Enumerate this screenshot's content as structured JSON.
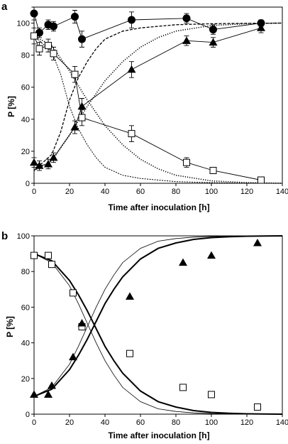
{
  "chart_data": [
    {
      "panel": "a",
      "type": "scatter",
      "xlabel": "Time after inoculation [h]",
      "ylabel": "P [%]",
      "xlim": [
        0,
        140
      ],
      "ylim": [
        0,
        110
      ],
      "xticks": [
        0,
        20,
        40,
        60,
        80,
        100,
        120,
        140
      ],
      "yticks": [
        0,
        20,
        40,
        60,
        80,
        100
      ],
      "series": [
        {
          "marker": "circle-filled",
          "connected": true,
          "x": [
            0,
            3,
            8,
            11,
            23,
            27,
            55,
            86,
            101,
            128
          ],
          "y": [
            106,
            94,
            99,
            98,
            104,
            90,
            102,
            103,
            96,
            100
          ],
          "err": [
            4,
            3,
            3,
            3,
            4,
            5,
            5,
            3,
            3,
            2
          ]
        },
        {
          "marker": "square-open",
          "connected": true,
          "x": [
            0,
            3,
            8,
            11,
            23,
            27,
            55,
            86,
            101,
            128
          ],
          "y": [
            92,
            84,
            86,
            81,
            68,
            41,
            31,
            13,
            8,
            2
          ],
          "err": [
            5,
            4,
            4,
            4,
            5,
            5,
            5,
            3,
            2,
            1
          ]
        },
        {
          "marker": "triangle-filled",
          "connected": true,
          "x": [
            0,
            3,
            8,
            11,
            23,
            27,
            55,
            86,
            101,
            128
          ],
          "y": [
            13,
            11,
            12,
            16,
            35,
            48,
            71,
            89,
            88,
            97
          ],
          "err": [
            3,
            3,
            3,
            3,
            4,
            5,
            5,
            3,
            3,
            3
          ]
        },
        {
          "line": "dashed",
          "x": [
            0,
            10,
            15,
            20,
            25,
            30,
            35,
            40,
            50,
            60,
            80,
            100,
            120,
            140
          ],
          "y": [
            8,
            18,
            32,
            52,
            66,
            76,
            84,
            90,
            95,
            97,
            99,
            99.6,
            99.9,
            100
          ]
        },
        {
          "line": "dashed-fine",
          "x": [
            0,
            10,
            15,
            20,
            25,
            30,
            35,
            40,
            50,
            60,
            80,
            100,
            120,
            140
          ],
          "y": [
            92,
            82,
            68,
            48,
            34,
            24,
            16,
            10,
            5,
            3,
            1,
            0.4,
            0.1,
            0
          ]
        },
        {
          "line": "dotted",
          "x": [
            0,
            10,
            20,
            30,
            40,
            50,
            60,
            70,
            80,
            100,
            120,
            140
          ],
          "y": [
            8,
            14,
            30,
            48,
            64,
            76,
            85,
            91,
            95,
            98.5,
            99.6,
            100
          ]
        },
        {
          "line": "dotted",
          "x": [
            0,
            10,
            20,
            30,
            40,
            50,
            60,
            70,
            80,
            100,
            120,
            140
          ],
          "y": [
            92,
            86,
            70,
            52,
            36,
            24,
            15,
            9,
            5,
            1.5,
            0.4,
            0
          ]
        }
      ]
    },
    {
      "panel": "b",
      "type": "scatter",
      "xlabel": "Time after inoculation [h]",
      "ylabel": "P [%]",
      "xlim": [
        0,
        140
      ],
      "ylim": [
        0,
        100
      ],
      "xticks": [
        0,
        20,
        40,
        60,
        80,
        100,
        120,
        140
      ],
      "yticks": [
        0,
        20,
        40,
        60,
        80,
        100
      ],
      "series": [
        {
          "marker": "square-open",
          "x": [
            0,
            8,
            10,
            22,
            27,
            54,
            84,
            100,
            126
          ],
          "y": [
            89,
            89,
            84,
            68,
            49,
            34,
            15,
            11,
            4
          ]
        },
        {
          "marker": "triangle-filled",
          "x": [
            0,
            8,
            10,
            22,
            27,
            54,
            84,
            100,
            126
          ],
          "y": [
            11,
            11,
            16,
            32,
            51,
            66,
            85,
            89,
            96
          ]
        },
        {
          "line": "thick",
          "x": [
            0,
            10,
            20,
            25,
            30,
            35,
            40,
            45,
            50,
            60,
            70,
            80,
            90,
            100,
            110,
            120,
            140
          ],
          "y": [
            10,
            14,
            25,
            33,
            42,
            52,
            62,
            70,
            77,
            87,
            93,
            96,
            98,
            99,
            99.5,
            99.8,
            100
          ]
        },
        {
          "line": "thick",
          "x": [
            0,
            10,
            20,
            25,
            30,
            35,
            40,
            45,
            50,
            60,
            70,
            80,
            90,
            100,
            110,
            120,
            140
          ],
          "y": [
            90,
            86,
            75,
            67,
            58,
            48,
            38,
            30,
            23,
            13,
            7,
            4,
            2,
            1,
            0.5,
            0.2,
            0
          ]
        },
        {
          "line": "thin",
          "x": [
            0,
            10,
            20,
            25,
            30,
            35,
            40,
            45,
            50,
            60,
            70,
            80,
            90,
            100,
            120,
            140
          ],
          "y": [
            10,
            15,
            28,
            38,
            49,
            60,
            70,
            78,
            85,
            93,
            97,
            98.5,
            99.3,
            99.7,
            99.9,
            100
          ]
        },
        {
          "line": "thin",
          "x": [
            0,
            10,
            20,
            25,
            30,
            35,
            40,
            45,
            50,
            60,
            70,
            80,
            90,
            100,
            120,
            140
          ],
          "y": [
            90,
            85,
            72,
            62,
            51,
            40,
            30,
            22,
            15,
            7,
            3,
            1.5,
            0.7,
            0.3,
            0.1,
            0
          ]
        }
      ]
    }
  ]
}
